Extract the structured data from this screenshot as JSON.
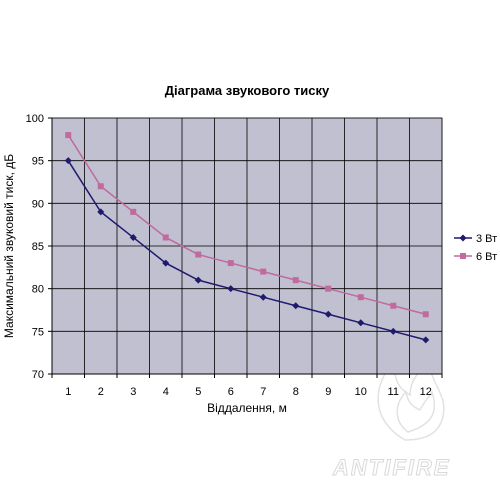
{
  "chart_data": {
    "type": "line",
    "title": "Діаграма звукового тиску",
    "xlabel": "Віддалення, м",
    "ylabel": "Максимальний звуковий тиск, дБ",
    "x": [
      1,
      2,
      3,
      4,
      5,
      6,
      7,
      8,
      9,
      10,
      11,
      12
    ],
    "ylim": [
      70,
      100
    ],
    "yticks": [
      70,
      75,
      80,
      85,
      90,
      95,
      100
    ],
    "grid": true,
    "legend_position": "right",
    "plot_background": "#c0c0d0",
    "series": [
      {
        "name": "3 Вт",
        "color": "#1f1a6e",
        "marker": "diamond",
        "values": [
          95,
          89,
          86,
          83,
          81,
          80,
          79,
          78,
          77,
          76,
          75,
          74
        ]
      },
      {
        "name": "6 Вт",
        "color": "#c06a9e",
        "marker": "square",
        "values": [
          98,
          92,
          89,
          86,
          84,
          83,
          82,
          81,
          80,
          79,
          78,
          77
        ]
      }
    ]
  },
  "watermark": {
    "text": "ANTIFIRE",
    "color": "#d9d9d9"
  }
}
